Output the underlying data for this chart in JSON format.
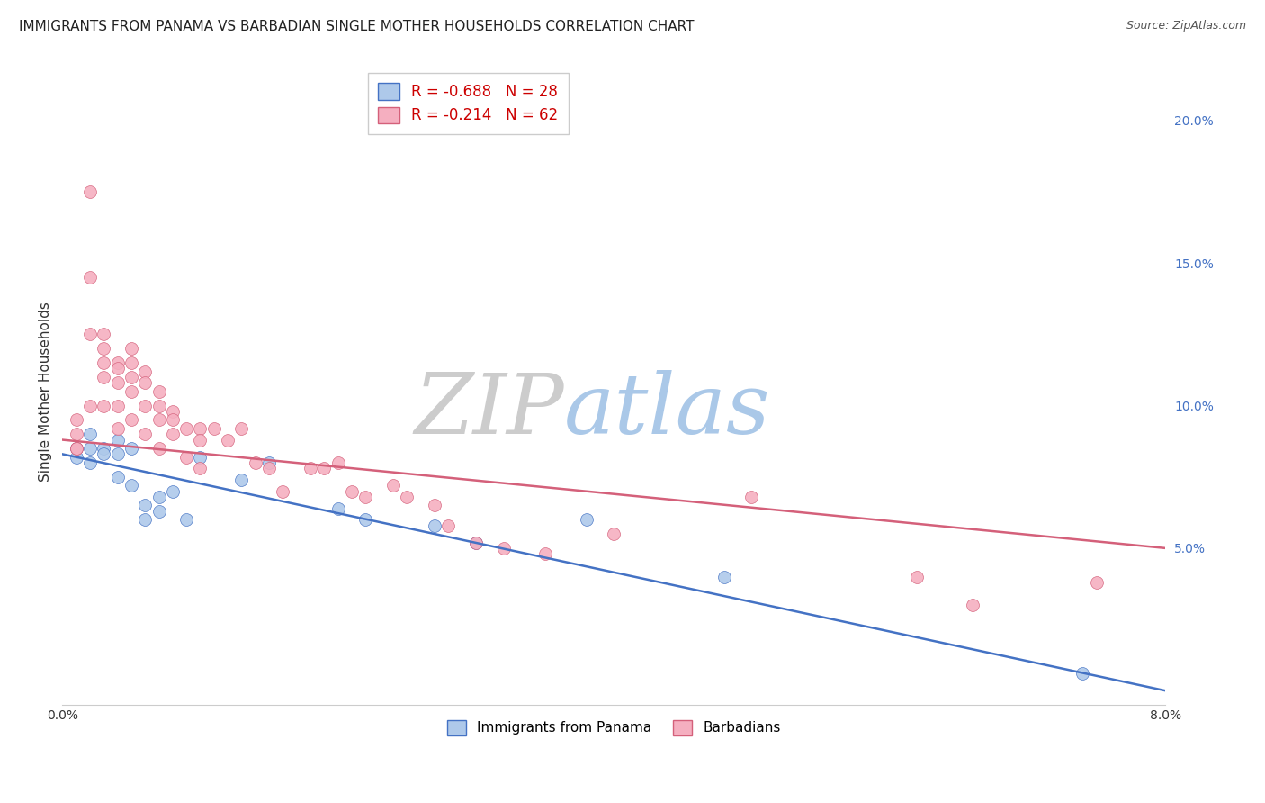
{
  "title": "IMMIGRANTS FROM PANAMA VS BARBADIAN SINGLE MOTHER HOUSEHOLDS CORRELATION CHART",
  "source": "Source: ZipAtlas.com",
  "ylabel_left": "Single Mother Households",
  "xlim": [
    0.0,
    0.08
  ],
  "ylim": [
    -0.005,
    0.215
  ],
  "xticks": [
    0.0,
    0.02,
    0.04,
    0.06,
    0.08
  ],
  "xtick_labels": [
    "0.0%",
    "",
    "",
    "",
    "8.0%"
  ],
  "yticks_right": [
    0.0,
    0.05,
    0.1,
    0.15,
    0.2
  ],
  "ytick_right_labels": [
    "",
    "5.0%",
    "10.0%",
    "15.0%",
    "20.0%"
  ],
  "series1_name": "Immigrants from Panama",
  "series1_color": "#aec9ea",
  "series1_edge_color": "#4472c4",
  "series1_line_color": "#4472c4",
  "series1_R": -0.688,
  "series1_N": 28,
  "series1_line_x0": 0.0,
  "series1_line_y0": 0.083,
  "series1_line_x1": 0.08,
  "series1_line_y1": 0.0,
  "series1_x": [
    0.001,
    0.001,
    0.002,
    0.002,
    0.002,
    0.003,
    0.003,
    0.004,
    0.004,
    0.004,
    0.005,
    0.005,
    0.006,
    0.006,
    0.007,
    0.007,
    0.008,
    0.009,
    0.01,
    0.013,
    0.015,
    0.02,
    0.022,
    0.027,
    0.03,
    0.038,
    0.048,
    0.074
  ],
  "series1_y": [
    0.085,
    0.082,
    0.09,
    0.085,
    0.08,
    0.085,
    0.083,
    0.088,
    0.083,
    0.075,
    0.085,
    0.072,
    0.065,
    0.06,
    0.068,
    0.063,
    0.07,
    0.06,
    0.082,
    0.074,
    0.08,
    0.064,
    0.06,
    0.058,
    0.052,
    0.06,
    0.04,
    0.006
  ],
  "series2_name": "Barbadians",
  "series2_color": "#f5afc0",
  "series2_edge_color": "#d4607a",
  "series2_line_color": "#d4607a",
  "series2_R": -0.214,
  "series2_N": 62,
  "series2_line_x0": 0.0,
  "series2_line_y0": 0.088,
  "series2_line_x1": 0.08,
  "series2_line_y1": 0.05,
  "series2_x": [
    0.001,
    0.001,
    0.001,
    0.001,
    0.002,
    0.002,
    0.002,
    0.002,
    0.003,
    0.003,
    0.003,
    0.003,
    0.003,
    0.004,
    0.004,
    0.004,
    0.004,
    0.004,
    0.005,
    0.005,
    0.005,
    0.005,
    0.005,
    0.006,
    0.006,
    0.006,
    0.006,
    0.007,
    0.007,
    0.007,
    0.007,
    0.008,
    0.008,
    0.008,
    0.009,
    0.009,
    0.01,
    0.01,
    0.01,
    0.011,
    0.012,
    0.013,
    0.014,
    0.015,
    0.016,
    0.018,
    0.019,
    0.02,
    0.021,
    0.022,
    0.024,
    0.025,
    0.027,
    0.028,
    0.03,
    0.032,
    0.035,
    0.04,
    0.05,
    0.062,
    0.066,
    0.075
  ],
  "series2_y": [
    0.095,
    0.09,
    0.085,
    0.085,
    0.175,
    0.145,
    0.125,
    0.1,
    0.125,
    0.12,
    0.115,
    0.11,
    0.1,
    0.115,
    0.113,
    0.108,
    0.1,
    0.092,
    0.12,
    0.115,
    0.11,
    0.105,
    0.095,
    0.112,
    0.108,
    0.1,
    0.09,
    0.105,
    0.1,
    0.095,
    0.085,
    0.098,
    0.095,
    0.09,
    0.092,
    0.082,
    0.092,
    0.088,
    0.078,
    0.092,
    0.088,
    0.092,
    0.08,
    0.078,
    0.07,
    0.078,
    0.078,
    0.08,
    0.07,
    0.068,
    0.072,
    0.068,
    0.065,
    0.058,
    0.052,
    0.05,
    0.048,
    0.055,
    0.068,
    0.04,
    0.03,
    0.038
  ],
  "watermark_zip": "ZIP",
  "watermark_atlas": "atlas",
  "watermark_zip_color": "#cccccc",
  "watermark_atlas_color": "#aac8e8",
  "background_color": "#ffffff",
  "grid_color": "#e0e0e0",
  "title_fontsize": 11,
  "source_fontsize": 9,
  "marker_size": 100,
  "legend_R_color": "#cc0000",
  "legend_N_color": "#000066"
}
